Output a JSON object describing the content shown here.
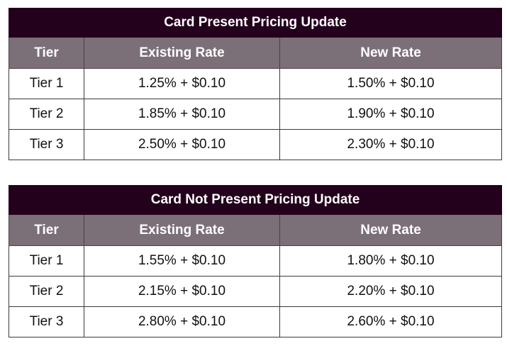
{
  "tables": [
    {
      "title": "Card Present Pricing Update",
      "headers": [
        "Tier",
        "Existing Rate",
        "New Rate"
      ],
      "rows": [
        [
          "Tier 1",
          "1.25% + $0.10",
          "1.50% + $0.10"
        ],
        [
          "Tier 2",
          "1.85% + $0.10",
          "1.90% + $0.10"
        ],
        [
          "Tier 3",
          "2.50% + $0.10",
          "2.30% + $0.10"
        ]
      ]
    },
    {
      "title": "Card Not Present Pricing Update",
      "headers": [
        "Tier",
        "Existing Rate",
        "New Rate"
      ],
      "rows": [
        [
          "Tier 1",
          "1.55% + $0.10",
          "1.80% + $0.10"
        ],
        [
          "Tier 2",
          "2.15% + $0.10",
          "2.20% + $0.10"
        ],
        [
          "Tier 3",
          "2.80% + $0.10",
          "2.60% + $0.10"
        ]
      ]
    }
  ],
  "colors": {
    "title_background": "#23001c",
    "header_background": "#7b6f78",
    "header_text": "#ffffff",
    "border": "#3a3a3a"
  }
}
